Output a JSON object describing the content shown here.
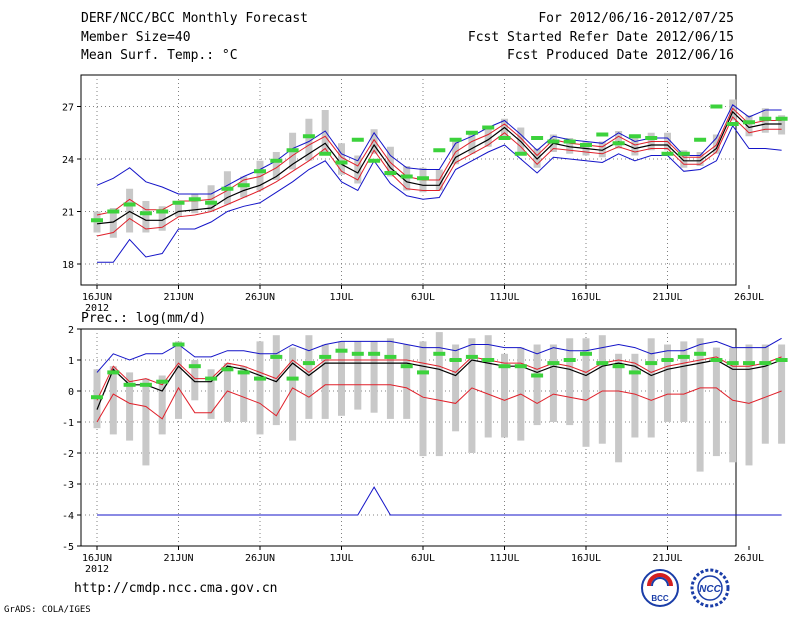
{
  "header": {
    "title": "DERF/NCC/BCC Monthly Forecast",
    "member_size": "Member Size=40",
    "variable": "Mean Surf. Temp.: °C",
    "period": "For 2012/06/16-2012/07/25",
    "start_date": "Fcst Started Refer Date 2012/06/15",
    "produced_date": "Fcst Produced Date 2012/06/16"
  },
  "footer": {
    "url": "http://cmdp.ncc.cma.gov.cn",
    "grads": "GrADS: COLA/IGES",
    "logo_left_text": "BCC",
    "logo_right_text": "NCC"
  },
  "colors": {
    "gray_bar": "#c8c8c8",
    "ensemble_mean": "#000000",
    "red_band": "#e0202a",
    "blue_band": "#1414c8",
    "green_dash": "#3cd23c",
    "grid": "#808080"
  },
  "chart_data": [
    {
      "type": "line",
      "title": "Mean Surf. Temp.: °C",
      "x_ticks": [
        "16JUN",
        "21JUN",
        "26JUN",
        "1JUL",
        "6JUL",
        "11JUL",
        "16JUL",
        "21JUL",
        "26JUL"
      ],
      "x_year": "2012",
      "y_ticks": [
        18,
        21,
        24,
        27
      ],
      "ylim": [
        16.8,
        28.8
      ],
      "days": 40,
      "series": [
        {
          "name": "mean",
          "values": [
            20.3,
            20.4,
            21.0,
            20.5,
            20.5,
            21.0,
            21.1,
            21.2,
            21.8,
            22.2,
            22.5,
            23.0,
            23.7,
            24.3,
            24.9,
            23.7,
            23.2,
            24.8,
            23.5,
            22.7,
            22.5,
            22.5,
            24.1,
            24.6,
            25.1,
            25.8,
            25.0,
            24.0,
            24.9,
            24.7,
            24.6,
            24.5,
            25.0,
            24.6,
            24.8,
            24.8,
            23.9,
            23.9,
            24.6,
            26.7,
            25.8,
            26.0,
            26.0
          ]
        },
        {
          "name": "red_upper",
          "values": [
            20.8,
            21.0,
            21.7,
            21.1,
            21.1,
            21.6,
            21.6,
            21.7,
            22.2,
            22.8,
            23.0,
            23.5,
            24.2,
            24.8,
            25.3,
            24.1,
            23.6,
            25.1,
            23.8,
            23.0,
            22.8,
            22.8,
            24.4,
            25.0,
            25.4,
            26.0,
            25.2,
            24.2,
            25.1,
            24.9,
            24.8,
            24.7,
            25.3,
            24.8,
            25.0,
            25.0,
            24.1,
            24.1,
            24.8,
            26.9,
            26.0,
            26.2,
            26.2
          ]
        },
        {
          "name": "red_lower",
          "values": [
            19.6,
            19.8,
            20.6,
            20.0,
            20.1,
            20.7,
            20.8,
            21.0,
            21.4,
            21.8,
            22.2,
            22.7,
            23.3,
            23.9,
            24.6,
            23.3,
            22.8,
            24.5,
            23.2,
            22.3,
            22.2,
            22.2,
            23.8,
            24.3,
            24.8,
            25.5,
            24.7,
            23.7,
            24.6,
            24.5,
            24.4,
            24.3,
            24.7,
            24.4,
            24.6,
            24.6,
            23.7,
            23.7,
            24.4,
            26.4,
            25.5,
            25.7,
            25.7
          ]
        },
        {
          "name": "blue_upper",
          "values": [
            22.5,
            22.9,
            23.5,
            22.7,
            22.4,
            22.0,
            22.0,
            22.0,
            22.5,
            23.0,
            23.4,
            23.9,
            24.6,
            25.0,
            25.6,
            24.3,
            23.9,
            25.5,
            24.2,
            23.5,
            23.4,
            23.4,
            24.9,
            25.3,
            25.8,
            26.2,
            25.4,
            24.5,
            25.3,
            25.1,
            25.0,
            24.9,
            25.5,
            25.0,
            25.2,
            25.2,
            24.2,
            24.2,
            25.2,
            27.1,
            26.4,
            26.8,
            26.8
          ]
        },
        {
          "name": "blue_lower",
          "values": [
            18.1,
            18.1,
            19.4,
            18.4,
            18.6,
            20.0,
            20.0,
            20.4,
            21.0,
            21.3,
            21.5,
            22.1,
            22.7,
            23.4,
            23.9,
            22.7,
            22.2,
            23.9,
            22.6,
            21.9,
            21.7,
            21.8,
            23.4,
            23.9,
            24.4,
            24.8,
            24.0,
            23.2,
            24.1,
            24.0,
            23.9,
            23.8,
            24.3,
            23.9,
            24.2,
            24.2,
            23.3,
            23.4,
            23.9,
            25.9,
            24.6,
            24.6,
            24.5
          ]
        },
        {
          "name": "green_dash",
          "values": [
            20.5,
            21.0,
            21.4,
            20.9,
            21.0,
            21.5,
            21.7,
            21.5,
            22.3,
            22.5,
            23.3,
            23.9,
            24.5,
            25.3,
            24.3,
            23.8,
            25.1,
            23.9,
            23.2,
            23.0,
            22.9,
            24.5,
            25.1,
            25.5,
            25.8,
            25.2,
            24.3,
            25.2,
            25.0,
            25.0,
            24.8,
            25.4,
            24.9,
            25.3,
            25.2,
            24.3,
            24.3,
            25.1,
            27.0,
            26.0,
            26.1,
            26.3,
            26.3
          ]
        },
        {
          "name": "bar_top",
          "values": [
            21.0,
            21.2,
            22.3,
            21.6,
            21.3,
            21.5,
            22.0,
            22.5,
            23.3,
            23.0,
            23.9,
            24.4,
            25.5,
            26.3,
            26.8,
            24.9,
            24.2,
            25.7,
            24.7,
            23.6,
            23.5,
            23.4,
            25.1,
            25.6,
            25.8,
            26.3,
            25.8,
            24.6,
            25.4,
            25.2,
            25.0,
            25.0,
            25.6,
            25.2,
            25.5,
            25.5,
            24.5,
            24.4,
            25.4,
            27.4,
            26.5,
            26.9,
            26.5
          ]
        },
        {
          "name": "bar_bottom",
          "values": [
            19.8,
            19.5,
            19.8,
            19.8,
            19.9,
            20.7,
            20.9,
            21.0,
            21.4,
            21.8,
            22.2,
            22.8,
            23.4,
            23.9,
            24.4,
            23.1,
            22.6,
            24.3,
            23.0,
            22.2,
            22.1,
            22.2,
            23.7,
            24.3,
            24.7,
            25.2,
            24.4,
            23.5,
            24.4,
            24.3,
            24.2,
            24.1,
            24.6,
            24.2,
            24.5,
            24.5,
            23.5,
            23.6,
            24.3,
            26.2,
            25.3,
            25.5,
            25.4
          ]
        }
      ]
    },
    {
      "type": "line",
      "title": "Prec.: log(mm/d)",
      "x_ticks": [
        "16JUN",
        "21JUN",
        "26JUN",
        "1JUL",
        "6JUL",
        "11JUL",
        "16JUL",
        "21JUL",
        "26JUL"
      ],
      "x_year": "2012",
      "y_ticks": [
        2,
        1,
        0,
        -1,
        -2,
        -3,
        -4,
        -5
      ],
      "ylim": [
        -5,
        2
      ],
      "days": 40,
      "series": [
        {
          "name": "mean",
          "values": [
            -0.6,
            0.7,
            0.2,
            0.2,
            0.0,
            0.8,
            0.3,
            0.3,
            0.8,
            0.7,
            0.5,
            0.3,
            0.9,
            0.5,
            0.9,
            0.9,
            0.9,
            0.9,
            0.9,
            0.9,
            0.8,
            0.7,
            0.5,
            1.0,
            0.9,
            0.8,
            0.8,
            0.6,
            0.8,
            0.7,
            0.5,
            0.8,
            0.9,
            0.8,
            0.5,
            0.7,
            0.8,
            0.9,
            1.0,
            0.7,
            0.7,
            0.8,
            1.0
          ]
        },
        {
          "name": "red_upper",
          "values": [
            -0.3,
            0.8,
            0.3,
            0.4,
            0.2,
            0.9,
            0.4,
            0.4,
            0.9,
            0.8,
            0.6,
            0.4,
            1.0,
            0.6,
            1.0,
            1.0,
            1.0,
            1.0,
            1.0,
            1.0,
            0.9,
            0.8,
            0.6,
            1.1,
            1.0,
            0.9,
            0.9,
            0.7,
            0.9,
            0.8,
            0.6,
            0.9,
            1.0,
            0.9,
            0.6,
            0.8,
            0.9,
            1.0,
            1.1,
            0.8,
            0.8,
            0.9,
            1.1
          ]
        },
        {
          "name": "red_lower",
          "values": [
            -1.0,
            -0.1,
            -0.4,
            -0.5,
            -0.9,
            0.1,
            -0.7,
            -0.7,
            0.0,
            -0.2,
            -0.4,
            -0.8,
            0.1,
            -0.2,
            0.2,
            0.2,
            0.2,
            0.2,
            0.2,
            0.1,
            -0.2,
            -0.3,
            -0.4,
            0.1,
            -0.1,
            -0.3,
            -0.1,
            -0.4,
            -0.1,
            -0.2,
            -0.3,
            0.0,
            0.0,
            -0.1,
            -0.3,
            -0.1,
            -0.1,
            0.1,
            0.1,
            -0.3,
            -0.4,
            -0.2,
            0.0
          ]
        },
        {
          "name": "blue_upper",
          "values": [
            0.6,
            1.2,
            1.0,
            1.2,
            1.2,
            1.5,
            1.1,
            1.1,
            1.3,
            1.3,
            1.2,
            1.2,
            1.5,
            1.3,
            1.5,
            1.6,
            1.6,
            1.6,
            1.6,
            1.5,
            1.4,
            1.4,
            1.3,
            1.5,
            1.5,
            1.4,
            1.4,
            1.2,
            1.4,
            1.3,
            1.3,
            1.4,
            1.5,
            1.4,
            1.2,
            1.3,
            1.3,
            1.5,
            1.6,
            1.4,
            1.4,
            1.4,
            1.7
          ]
        },
        {
          "name": "blue_lower",
          "values": [
            -4.0,
            -4.0,
            -4.0,
            -4.0,
            -4.0,
            -4.0,
            -4.0,
            -4.0,
            -4.0,
            -4.0,
            -4.0,
            -4.0,
            -4.0,
            -4.0,
            -4.0,
            -4.0,
            -4.0,
            -3.1,
            -4.0,
            -4.0,
            -4.0,
            -4.0,
            -4.0,
            -4.0,
            -4.0,
            -4.0,
            -4.0,
            -4.0,
            -4.0,
            -4.0,
            -4.0,
            -4.0,
            -4.0,
            -4.0,
            -4.0,
            -4.0,
            -4.0,
            -4.0,
            -4.0,
            -4.0,
            -4.0,
            -4.0,
            -4.0
          ]
        },
        {
          "name": "green_dash",
          "values": [
            -0.2,
            0.6,
            0.2,
            0.2,
            0.3,
            1.5,
            0.8,
            0.4,
            0.7,
            0.6,
            0.4,
            1.1,
            0.4,
            0.9,
            1.1,
            1.3,
            1.2,
            1.2,
            1.1,
            0.8,
            0.6,
            1.2,
            1.0,
            1.1,
            1.0,
            0.8,
            0.8,
            0.5,
            0.9,
            1.0,
            1.2,
            0.9,
            0.8,
            0.6,
            0.9,
            1.0,
            1.1,
            1.2,
            1.0,
            0.9,
            0.9,
            0.9,
            1.0
          ]
        },
        {
          "name": "bar_top",
          "values": [
            0.7,
            0.8,
            0.6,
            0.4,
            0.5,
            1.6,
            1.0,
            0.7,
            0.9,
            0.8,
            1.6,
            1.8,
            1.4,
            1.8,
            1.5,
            1.6,
            1.6,
            1.6,
            1.7,
            1.5,
            1.6,
            1.9,
            1.5,
            1.7,
            1.8,
            1.2,
            1.4,
            1.5,
            1.5,
            1.7,
            1.7,
            1.8,
            1.2,
            1.2,
            1.7,
            1.5,
            1.6,
            1.7,
            1.4,
            1.4,
            1.5,
            1.5,
            1.5
          ]
        },
        {
          "name": "bar_bottom",
          "values": [
            -1.2,
            -1.4,
            -1.6,
            -2.4,
            -1.4,
            -0.9,
            -0.3,
            -0.9,
            -1.0,
            -1.0,
            -1.4,
            -1.1,
            -1.6,
            -0.9,
            -0.9,
            -0.8,
            -0.6,
            -0.7,
            -0.9,
            -0.9,
            -2.1,
            -2.1,
            -1.3,
            -2.0,
            -1.5,
            -1.5,
            -1.6,
            -1.1,
            -1.0,
            -1.1,
            -1.8,
            -1.7,
            -2.3,
            -1.5,
            -1.5,
            -1.0,
            -1.0,
            -2.6,
            -2.1,
            -2.3,
            -2.4,
            -1.7,
            -1.7
          ]
        }
      ]
    }
  ]
}
